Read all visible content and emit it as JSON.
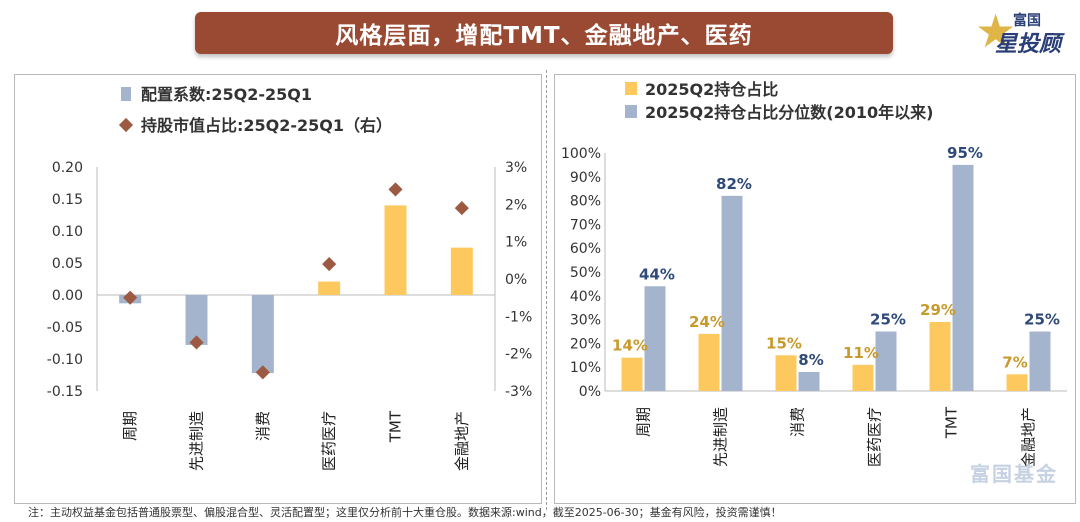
{
  "header": {
    "title": "风格层面，增配TMT、金融地产、医药"
  },
  "logo": {
    "line1": "富国",
    "line2": "星投顾"
  },
  "watermark": "富国基金",
  "footer": {
    "note": "注：主动权益基金包括普通股票型、偏股混合型、灵活配置型；这里仅分析前十大重仓股。数据来源:wind，截至2025-06-30；基金有风险，投资需谨慎！"
  },
  "colors": {
    "bar_blue": "#a3b4cc",
    "bar_yellow": "#fdc85e",
    "diamond": "#9d5a42",
    "label_blue": "#2f4a78",
    "label_gold": "#c89a2c",
    "title_bg": "#9a4a33"
  },
  "chart_data": [
    {
      "type": "bar",
      "categories": [
        "周期",
        "先进制造",
        "消费",
        "医药医疗",
        "TMT",
        "金融地产"
      ],
      "series": [
        {
          "name": "配置系数:25Q2-25Q1",
          "kind": "bar",
          "axis": "left",
          "values": [
            -0.013,
            -0.078,
            -0.122,
            0.021,
            0.14,
            0.074
          ]
        },
        {
          "name": "持股市值占比:25Q2-25Q1（右）",
          "kind": "marker",
          "axis": "right",
          "values": [
            -0.5,
            -1.7,
            -2.5,
            0.4,
            2.4,
            1.9
          ]
        }
      ],
      "ylim": [
        -0.15,
        0.2
      ],
      "yticks": [
        "-0.15",
        "-0.10",
        "-0.05",
        "0.00",
        "0.05",
        "0.10",
        "0.15",
        "0.20"
      ],
      "y2lim": [
        -3,
        3
      ],
      "y2ticks": [
        "-3%",
        "-2%",
        "-1%",
        "0%",
        "1%",
        "2%",
        "3%"
      ],
      "legend_position": "top-left"
    },
    {
      "type": "bar",
      "categories": [
        "周期",
        "先进制造",
        "消费",
        "医药医疗",
        "TMT",
        "金融地产"
      ],
      "series": [
        {
          "name": "2025Q2持仓占比",
          "values": [
            14,
            24,
            15,
            11,
            29,
            7
          ],
          "labels": [
            "14%",
            "24%",
            "15%",
            "11%",
            "29%",
            "7%"
          ]
        },
        {
          "name": "2025Q2持仓占比分位数(2010年以来)",
          "values": [
            44,
            82,
            8,
            25,
            95,
            25
          ],
          "labels": [
            "44%",
            "82%",
            "8%",
            "25%",
            "95%",
            "25%"
          ]
        }
      ],
      "ylim": [
        0,
        100
      ],
      "yticks": [
        "0%",
        "10%",
        "20%",
        "30%",
        "40%",
        "50%",
        "60%",
        "70%",
        "80%",
        "90%",
        "100%"
      ],
      "legend_position": "top-left"
    }
  ]
}
